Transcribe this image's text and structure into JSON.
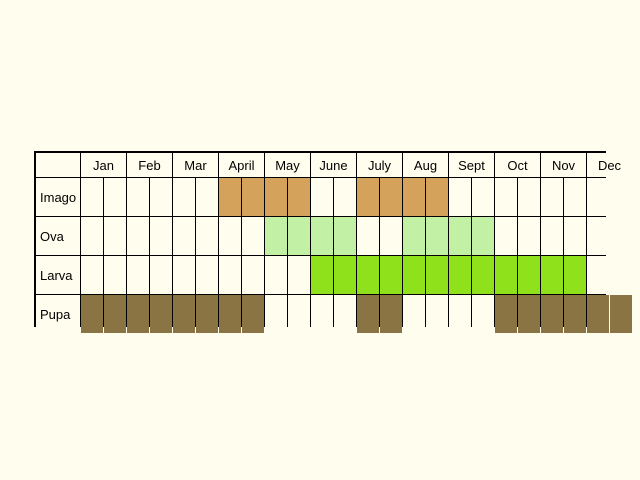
{
  "months": [
    "Jan",
    "Feb",
    "Mar",
    "April",
    "May",
    "June",
    "July",
    "Aug",
    "Sept",
    "Oct",
    "Nov",
    "Dec"
  ],
  "stages": [
    {
      "label": "Imago",
      "color": "#d4a25a",
      "periods": [
        0,
        0,
        0,
        0,
        0,
        0,
        0,
        0,
        0,
        0,
        0,
        0,
        0,
        0,
        0,
        0,
        0,
        0,
        0,
        0,
        0,
        0,
        0,
        0
      ],
      "active_half_months": [
        6,
        7,
        8,
        9,
        12,
        13,
        14,
        15
      ]
    },
    {
      "label": "Ova",
      "color": "#c2f0a4",
      "active_half_months": [
        8,
        9,
        10,
        11,
        14,
        15,
        16,
        17
      ]
    },
    {
      "label": "Larva",
      "color": "#8fe11c",
      "active_half_months": [
        10,
        11,
        12,
        13,
        14,
        15,
        16,
        17,
        18,
        19,
        20,
        21
      ]
    },
    {
      "label": "Pupa",
      "color": "#8b7443",
      "active_half_months": [
        0,
        1,
        2,
        3,
        4,
        5,
        6,
        7,
        12,
        13,
        18,
        19,
        20,
        21,
        22,
        23
      ]
    }
  ],
  "background_color": "#fffdee"
}
